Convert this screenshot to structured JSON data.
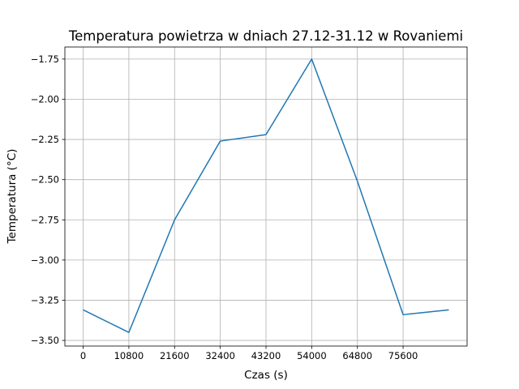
{
  "chart_data": {
    "type": "line",
    "title": "Temperatura powietrza w dniach 27.12-31.12 w Rovaniemi",
    "xlabel": "Czas (s)",
    "ylabel": "Temperatura (°C)",
    "x_ticks": [
      0,
      10800,
      21600,
      32400,
      43200,
      54000,
      64800,
      75600
    ],
    "x_tick_labels": [
      "0",
      "10800",
      "21600",
      "32400",
      "43200",
      "54000",
      "64800",
      "75600"
    ],
    "y_ticks": [
      -3.5,
      -3.25,
      -3.0,
      -2.75,
      -2.5,
      -2.25,
      -2.0,
      -1.75
    ],
    "y_tick_labels": [
      "−3.50",
      "−3.25",
      "−3.00",
      "−2.75",
      "−2.50",
      "−2.25",
      "−2.00",
      "−1.75"
    ],
    "xlim": [
      -4320,
      90720
    ],
    "ylim": [
      -3.535,
      -1.675
    ],
    "grid": true,
    "series": [
      {
        "color": "#1f77b4",
        "x": [
          0,
          10800,
          21600,
          32400,
          43200,
          54000,
          64800,
          75600,
          86400
        ],
        "y": [
          -3.31,
          -3.45,
          -2.75,
          -2.26,
          -2.22,
          -1.75,
          -2.51,
          -3.34,
          -3.31
        ]
      }
    ]
  }
}
